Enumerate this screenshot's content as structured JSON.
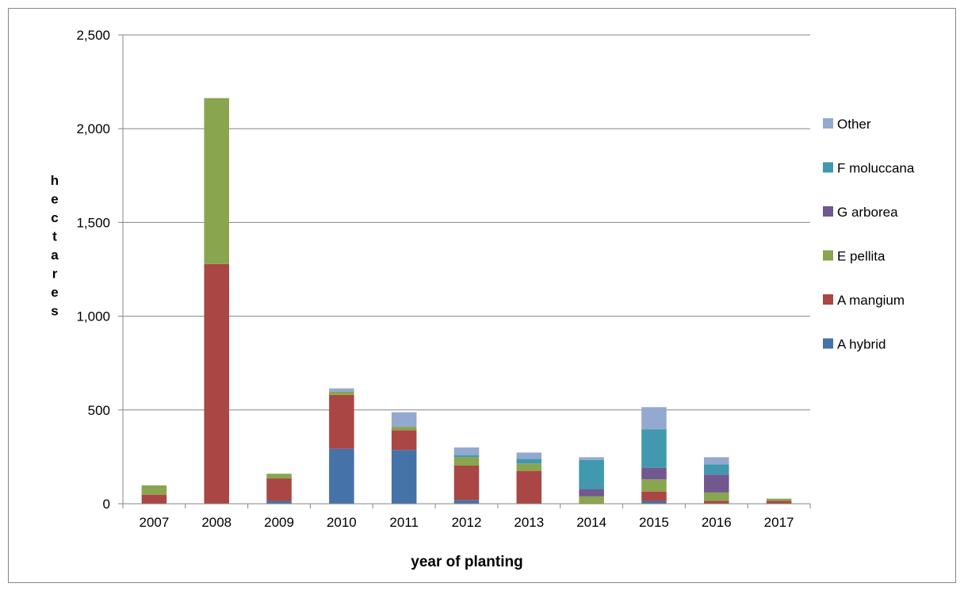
{
  "chart_data": {
    "type": "bar",
    "stacked": true,
    "title": "",
    "xlabel": "year of planting",
    "ylabel": "hectares",
    "ylim": [
      0,
      2500
    ],
    "yticks": [
      0,
      500,
      1000,
      1500,
      2000,
      2500
    ],
    "ytick_labels": [
      "0",
      "500",
      "1,000",
      "1,500",
      "2,000",
      "2,500"
    ],
    "grid": true,
    "legend_position": "right",
    "categories": [
      "2007",
      "2008",
      "2009",
      "2010",
      "2011",
      "2012",
      "2013",
      "2014",
      "2015",
      "2016",
      "2017"
    ],
    "series": [
      {
        "name": "A hybrid",
        "color": "#4572A7",
        "values": [
          0,
          0,
          15,
          293,
          287,
          20,
          0,
          0,
          15,
          0,
          0
        ]
      },
      {
        "name": "A mangium",
        "color": "#AA4643",
        "values": [
          48,
          1278,
          120,
          287,
          105,
          183,
          175,
          0,
          50,
          15,
          15
        ]
      },
      {
        "name": "E pellita",
        "color": "#89A54E",
        "values": [
          50,
          885,
          25,
          18,
          18,
          45,
          40,
          40,
          65,
          45,
          12
        ]
      },
      {
        "name": "G arborea",
        "color": "#71588F",
        "values": [
          0,
          0,
          0,
          0,
          0,
          0,
          0,
          38,
          62,
          95,
          0
        ]
      },
      {
        "name": "F moluccana",
        "color": "#4198AF",
        "values": [
          0,
          0,
          0,
          0,
          0,
          10,
          25,
          155,
          205,
          55,
          0
        ]
      },
      {
        "name": "Other",
        "color": "#93A9CF",
        "values": [
          0,
          0,
          0,
          17,
          78,
          42,
          33,
          15,
          118,
          38,
          0
        ]
      }
    ]
  }
}
